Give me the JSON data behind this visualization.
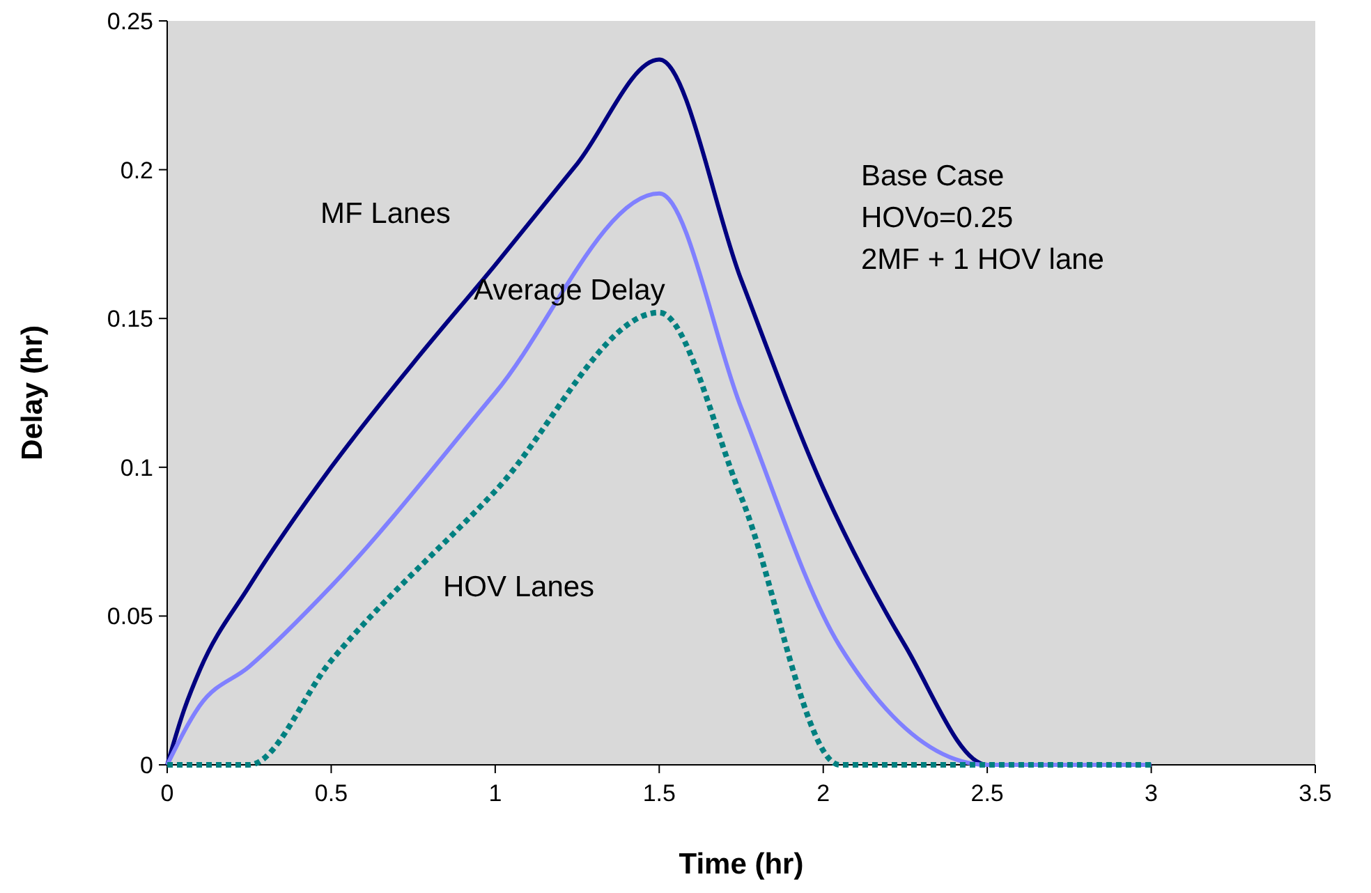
{
  "chart_data": {
    "type": "line",
    "xlabel": "Time (hr)",
    "ylabel": "Delay (hr)",
    "xlim": [
      0,
      3.5
    ],
    "xticks": [
      0,
      0.5,
      1,
      1.5,
      2,
      2.5,
      3,
      3.5
    ],
    "ylim": [
      0,
      0.25
    ],
    "yticks": [
      0,
      0.05,
      0.1,
      0.15,
      0.2,
      0.25
    ],
    "grid": false,
    "marker": "none",
    "series": [
      {
        "name": "MF Lanes",
        "color": "#000080",
        "line_style": "solid",
        "x": [
          0,
          0.05,
          0.1,
          0.25,
          0.5,
          0.75,
          1,
          1.25,
          1.5,
          1.75,
          2,
          2.25,
          2.5,
          3
        ],
        "values": [
          0,
          0.018,
          0.032,
          0.06,
          0.1,
          0.135,
          0.168,
          0.202,
          0.237,
          0.163,
          0.093,
          0.04,
          0,
          0
        ]
      },
      {
        "name": "Average Delay",
        "color": "#8080ff",
        "line_style": "solid",
        "x": [
          0,
          0.1,
          0.25,
          0.5,
          1,
          1.5,
          1.75,
          2.05,
          2.5,
          3
        ],
        "values": [
          0,
          0.02,
          0.033,
          0.06,
          0.125,
          0.192,
          0.12,
          0.04,
          0,
          0
        ]
      },
      {
        "name": "HOV Lanes",
        "color": "#008080",
        "line_style": "dotted",
        "x": [
          0,
          0.25,
          0.5,
          1,
          1.5,
          1.75,
          2.05,
          2.5,
          3
        ],
        "values": [
          0,
          0,
          0.035,
          0.092,
          0.152,
          0.09,
          0,
          0,
          0
        ]
      }
    ],
    "annotations": [
      "Base Case",
      "HOVo=0.25",
      "2MF + 1 HOV lane"
    ]
  }
}
